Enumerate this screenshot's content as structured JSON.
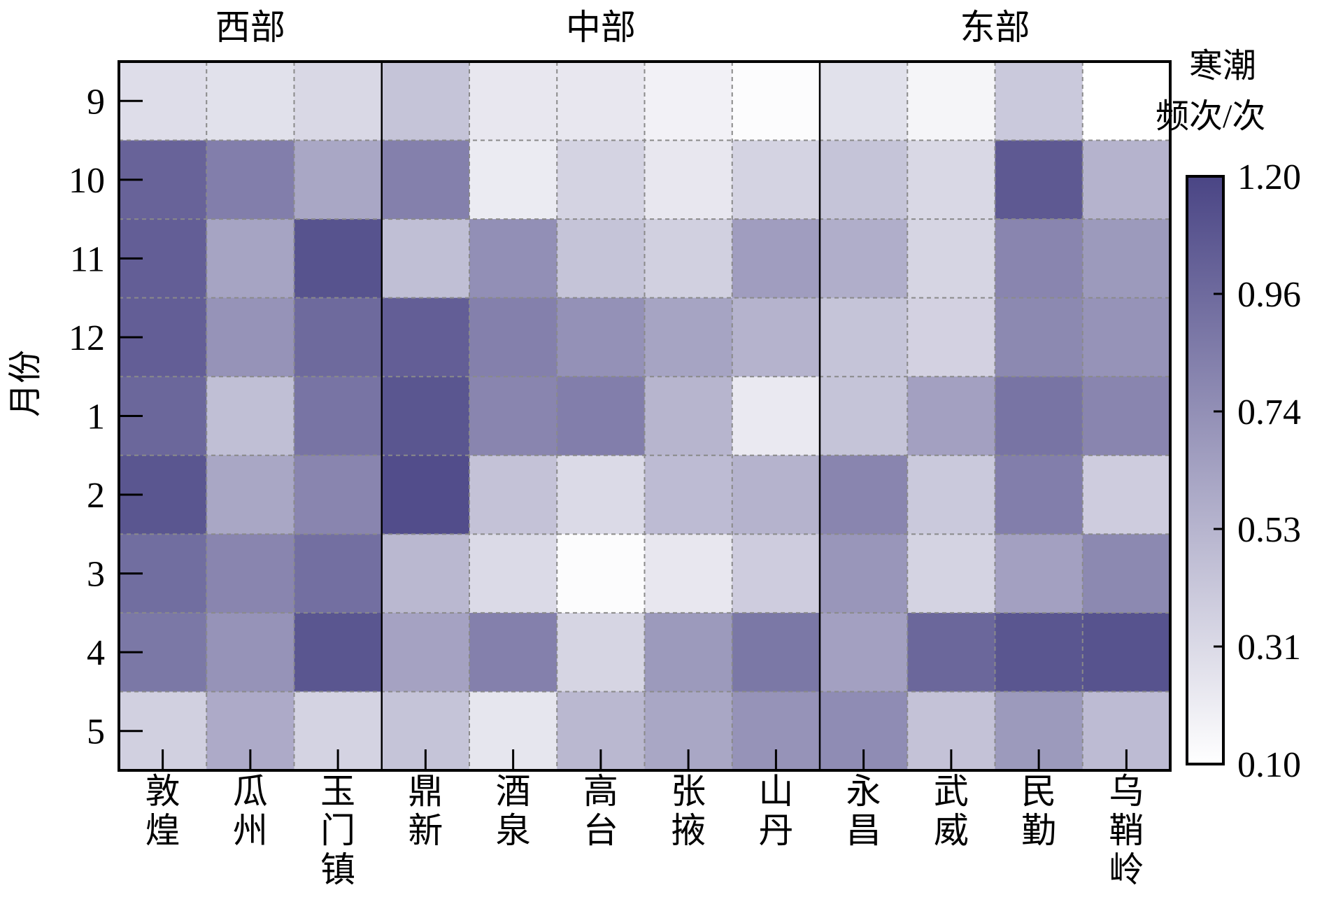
{
  "chart_data": {
    "type": "heatmap",
    "title": "",
    "ylabel": "月份",
    "groups": [
      {
        "label": "西部",
        "stations": 3
      },
      {
        "label": "中部",
        "stations": 5
      },
      {
        "label": "东部",
        "stations": 4
      }
    ],
    "stations": [
      "敦煌",
      "瓜州",
      "玉门镇",
      "鼎新",
      "酒泉",
      "高台",
      "张掖",
      "山丹",
      "永昌",
      "武威",
      "民勤",
      "乌鞘岭"
    ],
    "months": [
      "9",
      "10",
      "11",
      "12",
      "1",
      "2",
      "3",
      "4",
      "5"
    ],
    "values": [
      [
        0.3,
        0.28,
        0.33,
        0.45,
        0.24,
        0.24,
        0.18,
        0.12,
        0.28,
        0.16,
        0.42,
        0.1
      ],
      [
        1.02,
        0.86,
        0.62,
        0.85,
        0.22,
        0.36,
        0.24,
        0.36,
        0.45,
        0.33,
        1.08,
        0.55
      ],
      [
        1.05,
        0.64,
        1.12,
        0.48,
        0.76,
        0.45,
        0.38,
        0.68,
        0.58,
        0.35,
        0.82,
        0.7
      ],
      [
        1.05,
        0.74,
        0.98,
        1.05,
        0.85,
        0.75,
        0.64,
        0.55,
        0.45,
        0.37,
        0.8,
        0.74
      ],
      [
        1.0,
        0.48,
        0.92,
        1.1,
        0.82,
        0.86,
        0.54,
        0.23,
        0.45,
        0.66,
        0.92,
        0.82
      ],
      [
        1.1,
        0.62,
        0.82,
        1.15,
        0.46,
        0.32,
        0.5,
        0.55,
        0.82,
        0.42,
        0.86,
        0.4
      ],
      [
        0.96,
        0.82,
        0.95,
        0.52,
        0.32,
        0.12,
        0.24,
        0.4,
        0.72,
        0.36,
        0.66,
        0.8
      ],
      [
        0.9,
        0.74,
        1.1,
        0.65,
        0.85,
        0.35,
        0.7,
        0.9,
        0.66,
        1.0,
        1.1,
        1.12
      ],
      [
        0.38,
        0.6,
        0.36,
        0.45,
        0.25,
        0.52,
        0.62,
        0.74,
        0.78,
        0.46,
        0.7,
        0.5
      ]
    ],
    "colorbar": {
      "title_line1": "寒潮",
      "title_line2": "频次/次",
      "min": 0.1,
      "max": 1.2,
      "ticks": [
        "1.20",
        "0.96",
        "0.74",
        "0.53",
        "0.31",
        "0.10"
      ],
      "color_low": "#ffffff",
      "color_high": "#4a4585"
    },
    "grid": true,
    "grid_color": "#8a8a8a"
  }
}
